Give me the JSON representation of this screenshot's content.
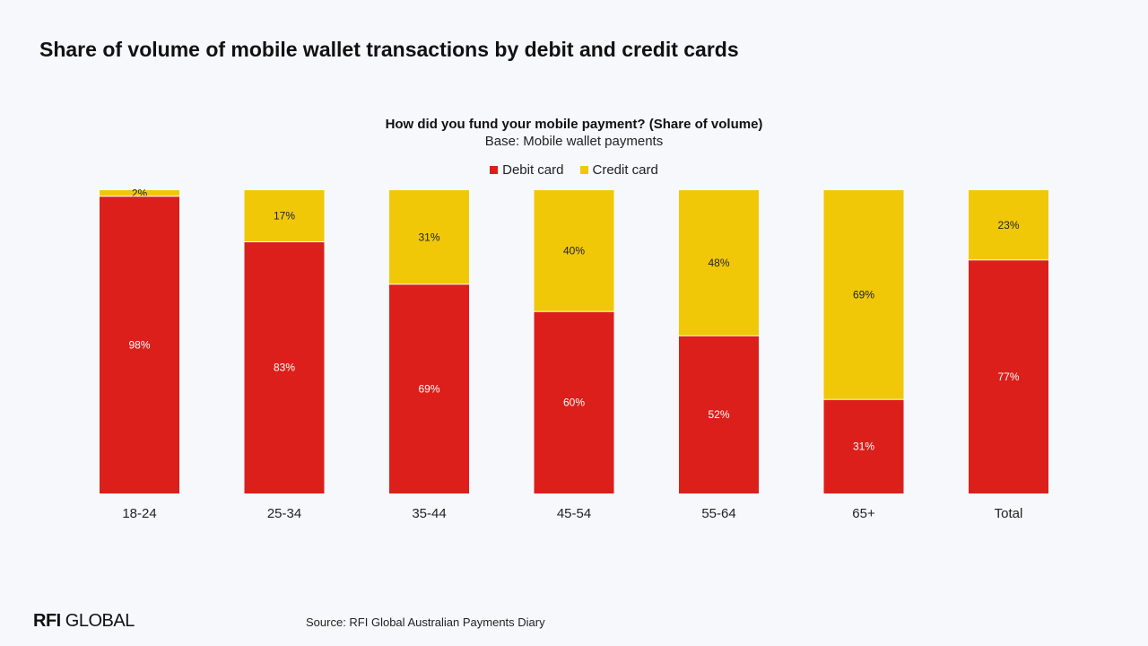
{
  "slide": {
    "title": "Share of volume of mobile wallet transactions by debit and credit cards"
  },
  "footer": {
    "logo_bold": "RFI",
    "logo_light": " GLOBAL",
    "source": "Source: RFI Global Australian Payments Diary"
  },
  "colors": {
    "debit": "#dc1f1a",
    "credit": "#f0c808",
    "background": "#f7f8fc"
  },
  "chart_data": {
    "type": "bar",
    "stacked": true,
    "title": "How did you fund your mobile payment? (Share of volume)",
    "subtitle": "Base: Mobile wallet payments",
    "legend_position": "top-center",
    "categories": [
      "18-24",
      "25-34",
      "35-44",
      "45-54",
      "55-64",
      "65+",
      "Total"
    ],
    "series": [
      {
        "name": "Debit card",
        "values": [
          98,
          83,
          69,
          60,
          52,
          31,
          77
        ],
        "labels": [
          "98%",
          "83%",
          "69%",
          "60%",
          "52%",
          "31%",
          "77%"
        ]
      },
      {
        "name": "Credit card",
        "values": [
          2,
          17,
          31,
          40,
          48,
          69,
          23
        ],
        "labels": [
          "2%",
          "17%",
          "31%",
          "40%",
          "48%",
          "69%",
          "23%"
        ]
      }
    ],
    "ylim": [
      0,
      100
    ],
    "grid": false
  }
}
